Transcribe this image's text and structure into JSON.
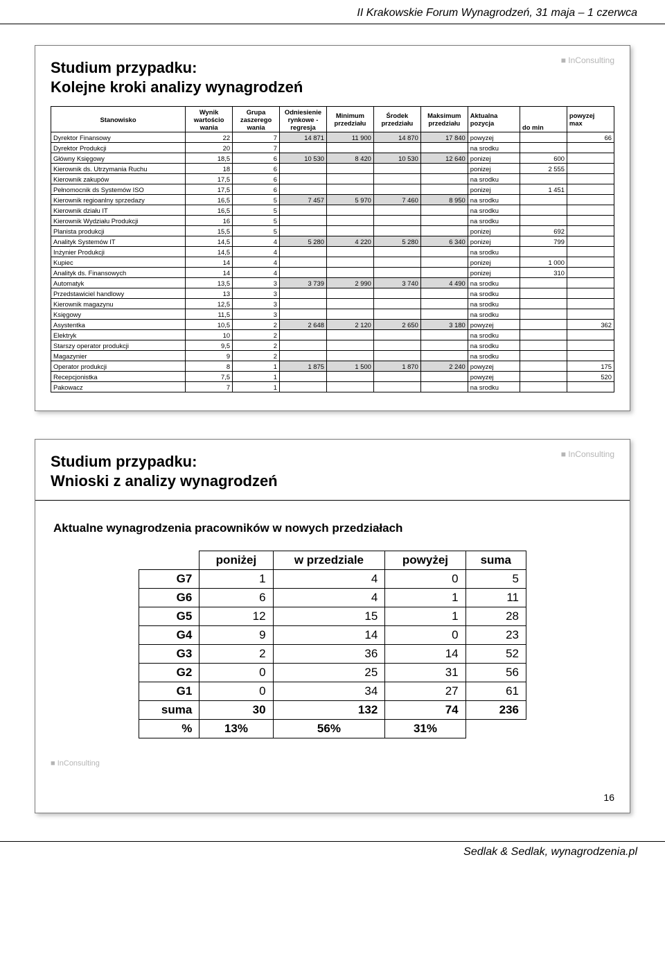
{
  "page_header": "II Krakowskie Forum Wynagrodzeń, 31 maja – 1 czerwca",
  "footer": "Sedlak & Sedlak, wynagrodzenia.pl",
  "logo_text": "■ InConsulting",
  "slide1": {
    "title_l1": "Studium przypadku:",
    "title_l2": "Kolejne kroki analizy wynagrodzeń",
    "headers": {
      "stanowisko": "Stanowisko",
      "wynik_l1": "Wynik",
      "wynik_l2": "wartościo",
      "wynik_l3": "wania",
      "grupa_l1": "Grupa",
      "grupa_l2": "zaszerego",
      "grupa_l3": "wania",
      "odn_l1": "Odniesienie",
      "odn_l2": "rynkowe -",
      "odn_l3": "regresja",
      "min_l1": "Minimum",
      "min_l2": "przedziału",
      "sr_l1": "Środek",
      "sr_l2": "przedziału",
      "max_l1": "Maksimum",
      "max_l2": "przedziału",
      "akt_l1": "Aktualna",
      "akt_l2": "pozycja",
      "domin": "do min",
      "pow_l1": "powyzej",
      "pow_l2": "max"
    },
    "group_min_cols": [
      3,
      4,
      5,
      6
    ],
    "rows": [
      {
        "g": 1,
        "c": [
          "Dyrektor Finansowy",
          "22",
          "7",
          "14 871",
          "11 900",
          "14 870",
          "17 840",
          "powyzej",
          "",
          "66"
        ]
      },
      {
        "g": 0,
        "c": [
          "Dyrektor Produkcji",
          "20",
          "7",
          "",
          "",
          "",
          "",
          "na srodku",
          "",
          ""
        ]
      },
      {
        "g": 1,
        "c": [
          "Główny Księgowy",
          "18,5",
          "6",
          "10 530",
          "8 420",
          "10 530",
          "12 640",
          "ponizej",
          "600",
          ""
        ]
      },
      {
        "g": 0,
        "c": [
          "Kierownik ds. Utrzymania Ruchu",
          "18",
          "6",
          "",
          "",
          "",
          "",
          "ponizej",
          "2 555",
          ""
        ]
      },
      {
        "g": 0,
        "c": [
          "Kierownik zakupów",
          "17,5",
          "6",
          "",
          "",
          "",
          "",
          "na srodku",
          "",
          ""
        ]
      },
      {
        "g": 0,
        "c": [
          "Pełnomocnik ds Systemów ISO",
          "17,5",
          "6",
          "",
          "",
          "",
          "",
          "ponizej",
          "1 451",
          ""
        ]
      },
      {
        "g": 1,
        "c": [
          "Kierownik regioanlny sprzedazy",
          "16,5",
          "5",
          "7 457",
          "5 970",
          "7 460",
          "8 950",
          "na srodku",
          "",
          ""
        ]
      },
      {
        "g": 0,
        "c": [
          "Kierownik działu IT",
          "16,5",
          "5",
          "",
          "",
          "",
          "",
          "na srodku",
          "",
          ""
        ]
      },
      {
        "g": 0,
        "c": [
          "Kierownik Wydziału Produkcji",
          "16",
          "5",
          "",
          "",
          "",
          "",
          "na srodku",
          "",
          ""
        ]
      },
      {
        "g": 0,
        "c": [
          "Planista produkcji",
          "15,5",
          "5",
          "",
          "",
          "",
          "",
          "ponizej",
          "692",
          ""
        ]
      },
      {
        "g": 1,
        "c": [
          "Analityk Systemów IT",
          "14,5",
          "4",
          "5 280",
          "4 220",
          "5 280",
          "6 340",
          "ponizej",
          "799",
          ""
        ]
      },
      {
        "g": 0,
        "c": [
          "Inżynier Produkcji",
          "14,5",
          "4",
          "",
          "",
          "",
          "",
          "na srodku",
          "",
          ""
        ]
      },
      {
        "g": 0,
        "c": [
          "Kupiec",
          "14",
          "4",
          "",
          "",
          "",
          "",
          "ponizej",
          "1 000",
          ""
        ]
      },
      {
        "g": 0,
        "c": [
          "Analityk ds. Finansowych",
          "14",
          "4",
          "",
          "",
          "",
          "",
          "ponizej",
          "310",
          ""
        ]
      },
      {
        "g": 1,
        "c": [
          "Automatyk",
          "13,5",
          "3",
          "3 739",
          "2 990",
          "3 740",
          "4 490",
          "na srodku",
          "",
          ""
        ]
      },
      {
        "g": 0,
        "c": [
          "Przedstawiciel handlowy",
          "13",
          "3",
          "",
          "",
          "",
          "",
          "na srodku",
          "",
          ""
        ]
      },
      {
        "g": 0,
        "c": [
          "Kierownik magazynu",
          "12,5",
          "3",
          "",
          "",
          "",
          "",
          "na srodku",
          "",
          ""
        ]
      },
      {
        "g": 0,
        "c": [
          "Księgowy",
          "11,5",
          "3",
          "",
          "",
          "",
          "",
          "na srodku",
          "",
          ""
        ]
      },
      {
        "g": 1,
        "c": [
          "Asystentka",
          "10,5",
          "2",
          "2 648",
          "2 120",
          "2 650",
          "3 180",
          "powyzej",
          "",
          "362"
        ]
      },
      {
        "g": 0,
        "c": [
          "Elektryk",
          "10",
          "2",
          "",
          "",
          "",
          "",
          "na srodku",
          "",
          ""
        ]
      },
      {
        "g": 0,
        "c": [
          "Starszy operator produkcji",
          "9,5",
          "2",
          "",
          "",
          "",
          "",
          "na srodku",
          "",
          ""
        ]
      },
      {
        "g": 0,
        "c": [
          "Magazynier",
          "9",
          "2",
          "",
          "",
          "",
          "",
          "na srodku",
          "",
          ""
        ]
      },
      {
        "g": 1,
        "c": [
          "Operator produkcji",
          "8",
          "1",
          "1 875",
          "1 500",
          "1 870",
          "2 240",
          "powyzej",
          "",
          "175"
        ]
      },
      {
        "g": 0,
        "c": [
          "Recepcjonistka",
          "7,5",
          "1",
          "",
          "",
          "",
          "",
          "powyzej",
          "",
          "520"
        ]
      },
      {
        "g": 0,
        "c": [
          "Pakowacz",
          "7",
          "1",
          "",
          "",
          "",
          "",
          "na srodku",
          "",
          ""
        ]
      }
    ]
  },
  "slide2": {
    "title_l1": "Studium przypadku:",
    "title_l2": "Wnioski z analizy wynagrodzeń",
    "subtitle": "Aktualne wynagrodzenia pracowników w nowych przedziałach",
    "headers": [
      "",
      "poniżej",
      "w przedziale",
      "powyżej",
      "suma"
    ],
    "rows": [
      [
        "G7",
        "1",
        "4",
        "0",
        "5"
      ],
      [
        "G6",
        "6",
        "4",
        "1",
        "11"
      ],
      [
        "G5",
        "12",
        "15",
        "1",
        "28"
      ],
      [
        "G4",
        "9",
        "14",
        "0",
        "23"
      ],
      [
        "G3",
        "2",
        "36",
        "14",
        "52"
      ],
      [
        "G2",
        "0",
        "25",
        "31",
        "56"
      ],
      [
        "G1",
        "0",
        "34",
        "27",
        "61"
      ]
    ],
    "sum_row": [
      "suma",
      "30",
      "132",
      "74",
      "236"
    ],
    "pct_row": [
      "%",
      "13%",
      "56%",
      "31%",
      ""
    ],
    "page_num": "16"
  }
}
